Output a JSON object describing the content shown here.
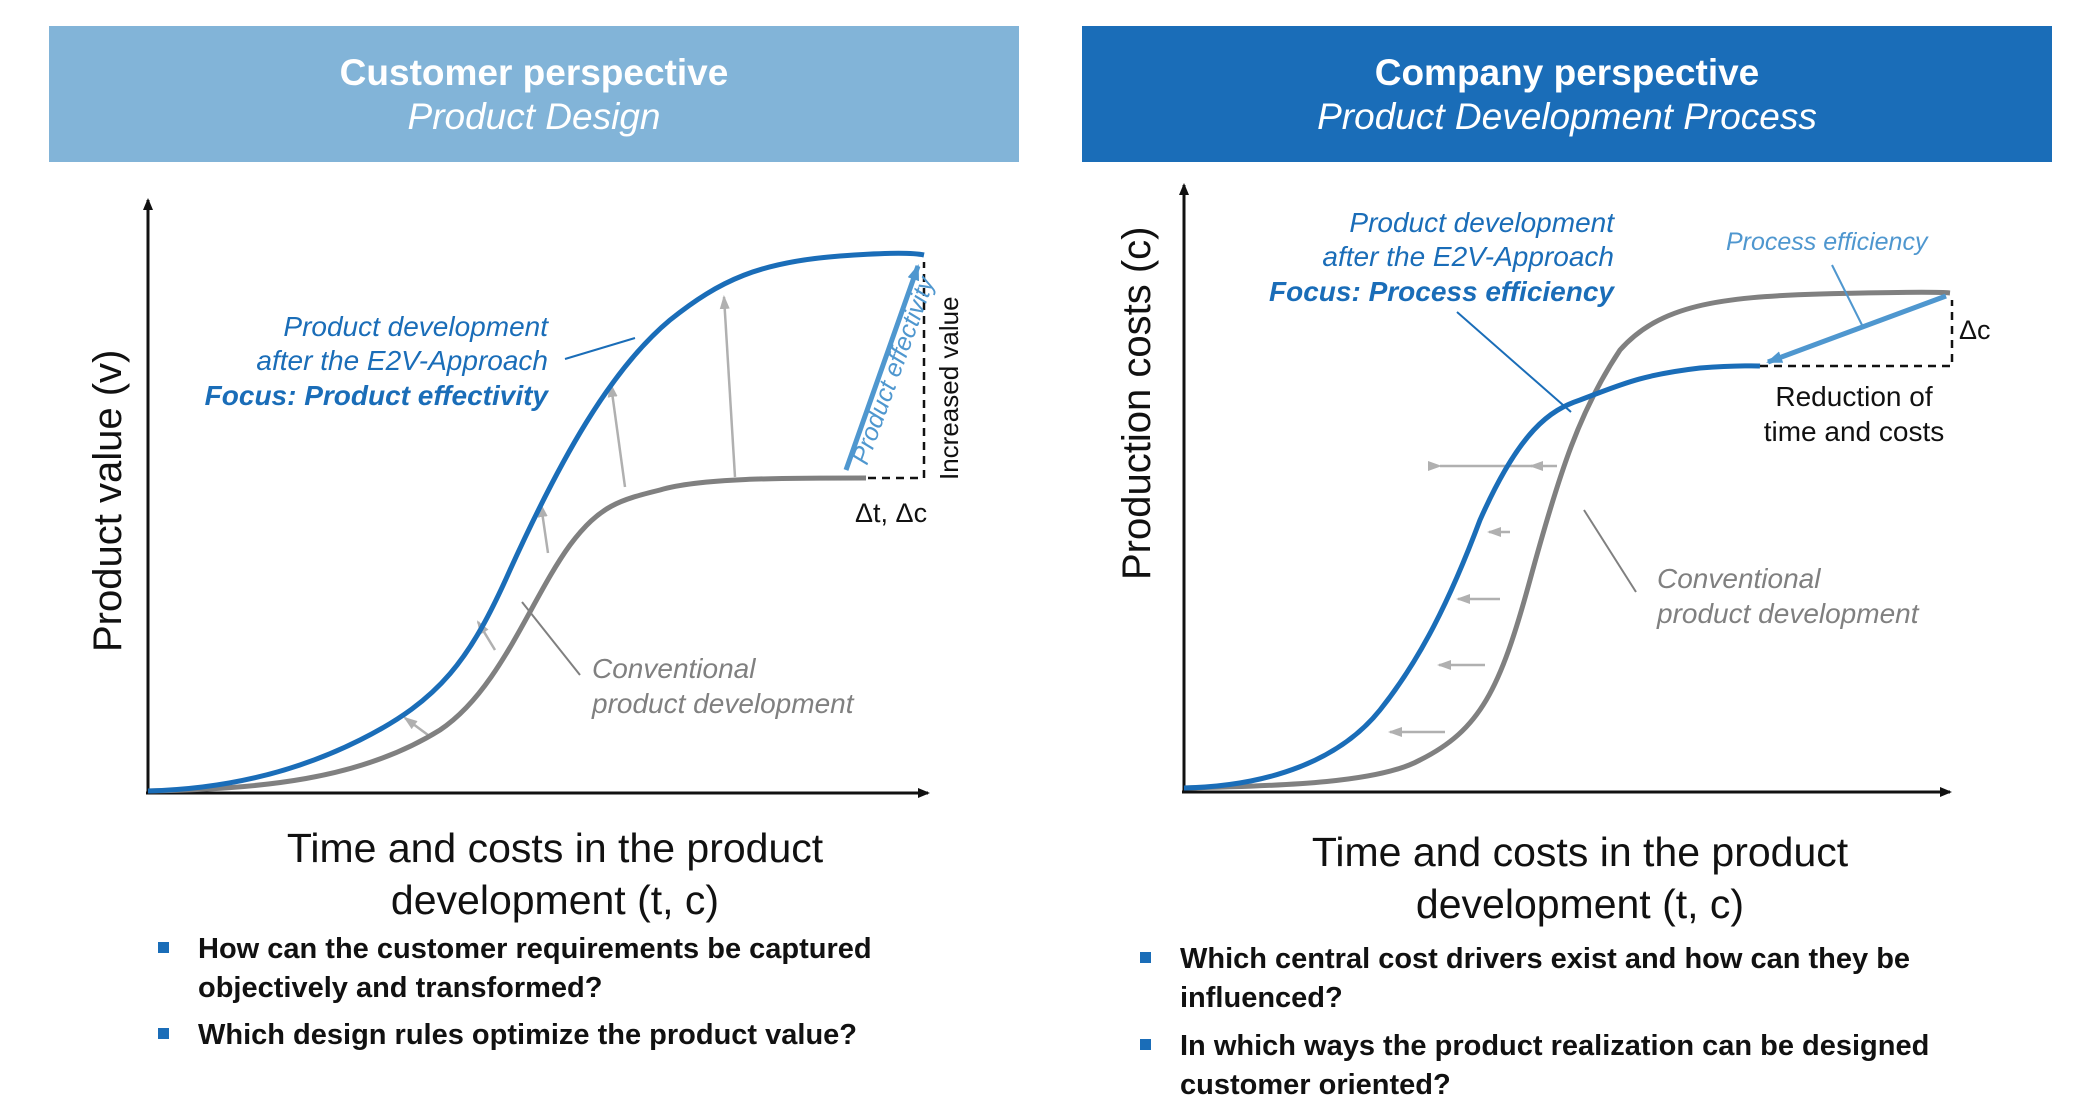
{
  "left": {
    "header_title": "Customer perspective",
    "header_subtitle": "Product Design",
    "y_axis_label": "Product value (v)",
    "x_axis_label_line1": "Time and costs in the product",
    "x_axis_label_line2": "development (t, c)",
    "e2v_line1": "Product development",
    "e2v_line2": "after the E2V-Approach",
    "e2v_focus": "Focus: Product effectivity",
    "conv_line1": "Conventional",
    "conv_line2": "product development",
    "arrow_label": "Product effectivity",
    "increase_label": "Increased value",
    "delta_label": "Δt, Δc",
    "bullets": [
      "How can the customer requirements be captured objectively and transformed?",
      "Which design rules optimize the product value?"
    ]
  },
  "right": {
    "header_title": "Company perspective",
    "header_subtitle": "Product Development Process",
    "y_axis_label": "Production costs (c)",
    "x_axis_label_line1": "Time and costs in the product",
    "x_axis_label_line2": "development (t, c)",
    "e2v_line1": "Product development",
    "e2v_line2": "after the E2V-Approach",
    "e2v_focus": "Focus: Process efficiency",
    "conv_line1": "Conventional",
    "conv_line2": "product development",
    "process_label": "Process efficiency",
    "delta_label": "Δc",
    "reduction_line1": "Reduction of",
    "reduction_line2": "time and costs",
    "bullets": [
      "Which central cost drivers exist and how can they be influenced?",
      "In which ways the product realization can be designed customer oriented?"
    ]
  },
  "colors": {
    "left_header": "#82b4d8",
    "right_header": "#1a6db8",
    "e2v_curve": "#1a6db8",
    "conventional_curve": "#808080",
    "shift_arrows": "#b0b0b0",
    "effect_arrow": "#4f97cf"
  }
}
